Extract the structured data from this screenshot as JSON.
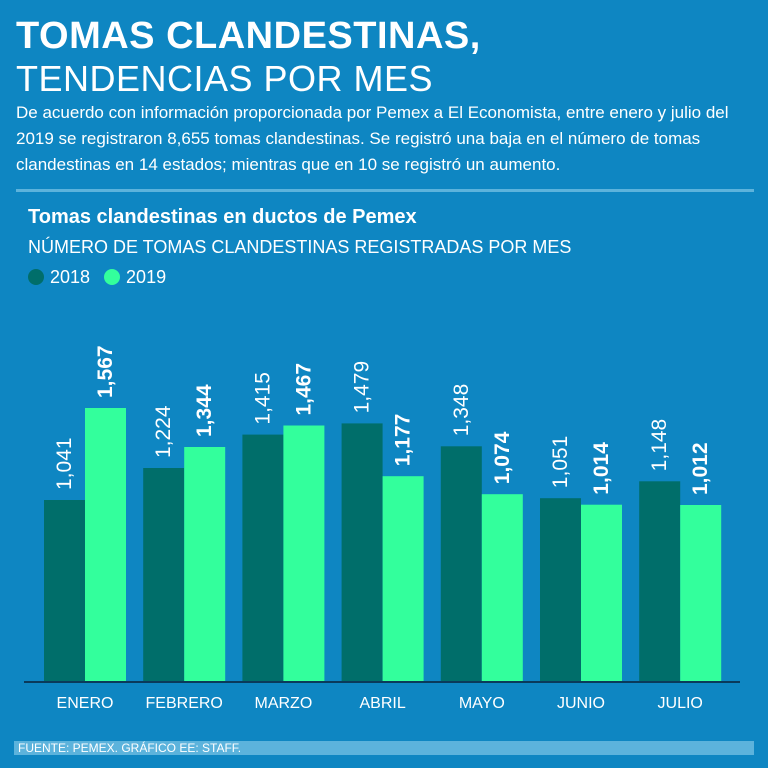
{
  "header": {
    "title_line1": "TOMAS CLANDESTINAS,",
    "title_line2": "TENDENCIAS POR MES",
    "intro": "De acuerdo con información proporcionada por Pemex a El Economista, entre enero y julio del 2019 se registraron 8,655 tomas clandestinas. Se registró una baja en el número de tomas clandestinas en 14 estados; mientras que en 10 se registró un aumento."
  },
  "chart_data": {
    "type": "bar",
    "title": "Tomas clandestinas en ductos de Pemex",
    "subtitle": "NÚMERO DE TOMAS CLANDESTINAS REGISTRADAS POR MES",
    "categories": [
      "ENERO",
      "FEBRERO",
      "MARZO",
      "ABRIL",
      "MAYO",
      "JUNIO",
      "JULIO"
    ],
    "series": [
      {
        "name": "2018",
        "color": "#006e6a",
        "values": [
          1041,
          1224,
          1415,
          1479,
          1348,
          1051,
          1148
        ],
        "labels": [
          "1,041",
          "1,224",
          "1,415",
          "1,479",
          "1,348",
          "1,051",
          "1,148"
        ],
        "label_weight": "normal"
      },
      {
        "name": "2019",
        "color": "#33ff9c",
        "values": [
          1567,
          1344,
          1467,
          1177,
          1074,
          1014,
          1012
        ],
        "labels": [
          "1,567",
          "1,344",
          "1,467",
          "1,177",
          "1,074",
          "1,014",
          "1,012"
        ],
        "label_weight": "bold"
      }
    ],
    "ylim": [
      0,
      1567
    ],
    "xlabel": "",
    "ylabel": "",
    "grid": false,
    "legend_position": "top-left"
  },
  "footer": {
    "source": "FUENTE: PEMEX. GRÁFICO EE: STAFF."
  }
}
